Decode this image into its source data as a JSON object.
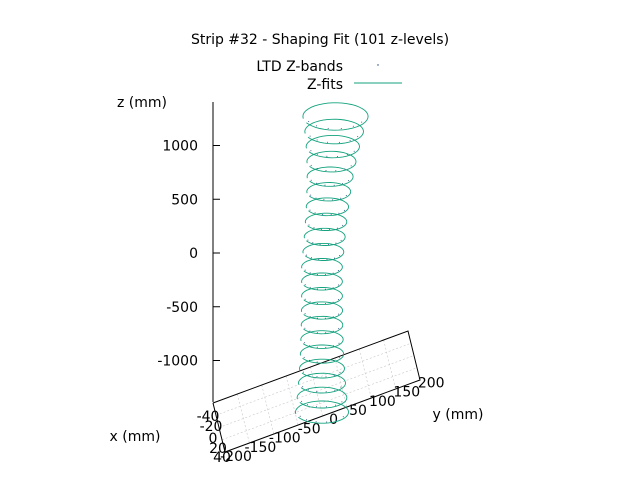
{
  "chart_data": {
    "type": "line",
    "title": "Strip #32 - Shaping Fit (101 z-levels)",
    "xlabel": "x (mm)",
    "ylabel": "y (mm)",
    "zlabel": "z (mm)",
    "legend": {
      "placement": "top-center",
      "entries": [
        "LTD Z-bands",
        "Z-fits"
      ]
    },
    "series_colors": {
      "LTD Z-bands": "#1a3f7a",
      "Z-fits": "#13a37e"
    },
    "z_ticks": [
      "1000",
      "500",
      "0",
      "-500",
      "-1000"
    ],
    "x_ticks": [
      "-40",
      "-20",
      "0",
      "20",
      "40"
    ],
    "y_ticks": [
      "-200",
      "-150",
      "-100",
      "-50",
      "0",
      "50",
      "100",
      "150",
      "200"
    ],
    "xlim": [
      -40,
      40
    ],
    "ylim": [
      -200,
      200
    ],
    "zlim": [
      -1350,
      1350
    ],
    "z_levels": 101,
    "fit_shape": {
      "z_min": -1350,
      "z_max": 1350,
      "radius_at_zmin_mm": 26,
      "radius_at_z0_mm": 20,
      "radius_at_zmax_mm": 32
    }
  }
}
